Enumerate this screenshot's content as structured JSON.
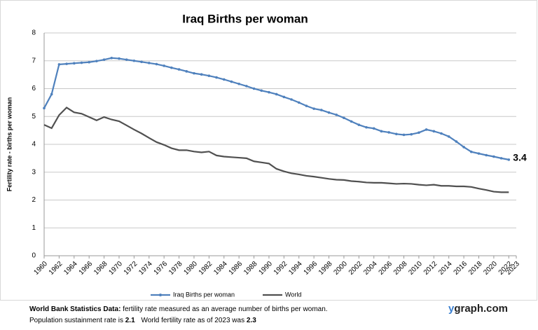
{
  "chart_data": {
    "type": "line",
    "title": "Iraq Births per woman",
    "y_label": "Fertility rate  - births per woman",
    "annotation": "3.4",
    "x": [
      1960,
      1961,
      1962,
      1963,
      1964,
      1965,
      1966,
      1967,
      1968,
      1969,
      1970,
      1971,
      1972,
      1973,
      1974,
      1975,
      1976,
      1977,
      1978,
      1979,
      1980,
      1981,
      1982,
      1983,
      1984,
      1985,
      1986,
      1987,
      1988,
      1989,
      1990,
      1991,
      1992,
      1993,
      1994,
      1995,
      1996,
      1997,
      1998,
      1999,
      2000,
      2001,
      2002,
      2003,
      2004,
      2005,
      2006,
      2007,
      2008,
      2009,
      2010,
      2011,
      2012,
      2013,
      2014,
      2015,
      2016,
      2017,
      2018,
      2019,
      2020,
      2021,
      2022
    ],
    "series": [
      {
        "name": "Iraq Births per woman",
        "color": "#4f81bd",
        "markers": true,
        "values": [
          5.3,
          5.8,
          6.87,
          6.89,
          6.91,
          6.93,
          6.95,
          6.99,
          7.04,
          7.1,
          7.08,
          7.04,
          7.0,
          6.96,
          6.92,
          6.88,
          6.82,
          6.75,
          6.69,
          6.62,
          6.55,
          6.51,
          6.46,
          6.4,
          6.33,
          6.25,
          6.17,
          6.09,
          6.0,
          5.93,
          5.87,
          5.8,
          5.7,
          5.61,
          5.5,
          5.38,
          5.28,
          5.23,
          5.14,
          5.06,
          4.95,
          4.82,
          4.7,
          4.61,
          4.57,
          4.47,
          4.43,
          4.37,
          4.34,
          4.36,
          4.42,
          4.53,
          4.47,
          4.39,
          4.28,
          4.1,
          3.9,
          3.73,
          3.67,
          3.61,
          3.56,
          3.5,
          3.45
        ]
      },
      {
        "name": "World",
        "color": "#505050",
        "markers": false,
        "values": [
          4.7,
          4.58,
          5.05,
          5.32,
          5.15,
          5.1,
          4.98,
          4.86,
          4.98,
          4.89,
          4.83,
          4.68,
          4.53,
          4.39,
          4.23,
          4.08,
          3.98,
          3.86,
          3.79,
          3.79,
          3.74,
          3.71,
          3.74,
          3.6,
          3.56,
          3.54,
          3.52,
          3.5,
          3.39,
          3.35,
          3.31,
          3.12,
          3.03,
          2.96,
          2.92,
          2.87,
          2.84,
          2.8,
          2.76,
          2.73,
          2.72,
          2.68,
          2.66,
          2.63,
          2.62,
          2.62,
          2.6,
          2.58,
          2.59,
          2.58,
          2.55,
          2.53,
          2.55,
          2.51,
          2.51,
          2.49,
          2.49,
          2.47,
          2.41,
          2.36,
          2.3,
          2.28,
          2.28
        ]
      }
    ],
    "xlim": [
      1960,
      2023
    ],
    "xticks": [
      1960,
      1962,
      1964,
      1966,
      1968,
      1970,
      1972,
      1974,
      1976,
      1978,
      1980,
      1982,
      1984,
      1986,
      1988,
      1990,
      1992,
      1994,
      1996,
      1998,
      2000,
      2002,
      2004,
      2006,
      2008,
      2010,
      2012,
      2014,
      2016,
      2018,
      2020,
      2022,
      2023
    ],
    "ylim": [
      0,
      8
    ],
    "yticks": [
      0,
      1,
      2,
      3,
      4,
      5,
      6,
      7,
      8
    ],
    "grid": true
  },
  "footer": {
    "line1_bold": "World Bank  Statistics  Data:",
    "line1": "fertility rate measured as an average number  of births per woman.",
    "line2a": "Population sustainment rate is",
    "line2a_bold": "2.1",
    "line2b": "World fertility rate as of 2023 was",
    "line2b_bold": "2.3",
    "brand": "ygraph.com"
  }
}
